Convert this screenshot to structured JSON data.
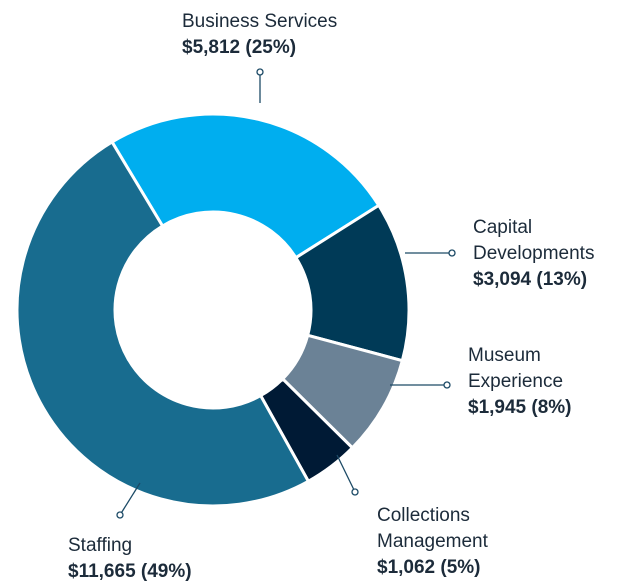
{
  "chart_data": {
    "type": "donut",
    "categories": [
      "Business Services",
      "Capital Developments",
      "Museum Experience",
      "Collections Management",
      "Staffing"
    ],
    "values": [
      5812,
      3094,
      1945,
      1062,
      11665
    ],
    "value_labels": [
      "$5,812 (25%)",
      "$3,094 (13%)",
      "$1,945 (8%)",
      "$1,062 (5%)",
      "$11,665 (49%)"
    ],
    "colors": [
      "#00aeef",
      "#003a57",
      "#6b8296",
      "#001a35",
      "#186c8f"
    ]
  }
}
